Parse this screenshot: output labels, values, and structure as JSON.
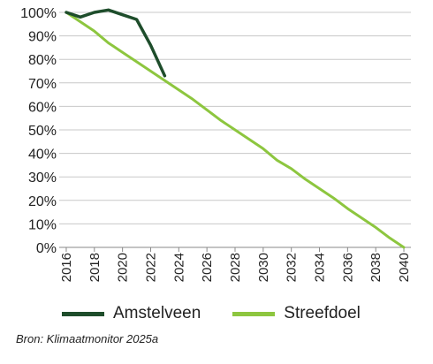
{
  "chart_data": {
    "type": "line",
    "x_ticks": [
      "2016",
      "2018",
      "2020",
      "2022",
      "2024",
      "2026",
      "2028",
      "2030",
      "2032",
      "2034",
      "2036",
      "2038",
      "2040"
    ],
    "y_ticks": [
      "0%",
      "10%",
      "20%",
      "30%",
      "40%",
      "50%",
      "60%",
      "70%",
      "80%",
      "90%",
      "100%"
    ],
    "xlim": [
      2015.5,
      2040.5
    ],
    "ylim": [
      0,
      100
    ],
    "grid": true,
    "legend_position": "bottom-left",
    "series": [
      {
        "name": "Amstelveen",
        "color": "#1e4d2b",
        "x": [
          2016,
          2017,
          2018,
          2019,
          2020,
          2021,
          2022,
          2023
        ],
        "y": [
          100,
          98,
          100,
          101,
          99,
          97,
          86,
          73
        ]
      },
      {
        "name": "Streefdoel",
        "color": "#8dc63f",
        "x": [
          2016,
          2017,
          2018,
          2019,
          2020,
          2021,
          2022,
          2023,
          2024,
          2025,
          2026,
          2027,
          2028,
          2029,
          2030,
          2031,
          2032,
          2033,
          2034,
          2035,
          2036,
          2037,
          2038,
          2039,
          2040
        ],
        "y": [
          100,
          96,
          92,
          87,
          83,
          79,
          75,
          71,
          67,
          63,
          58.5,
          54,
          50,
          46,
          42,
          37,
          33.5,
          29,
          25,
          21,
          16.5,
          12.5,
          8.5,
          4,
          0
        ]
      }
    ]
  },
  "source": "Bron: Klimaatmonitor 2025a"
}
